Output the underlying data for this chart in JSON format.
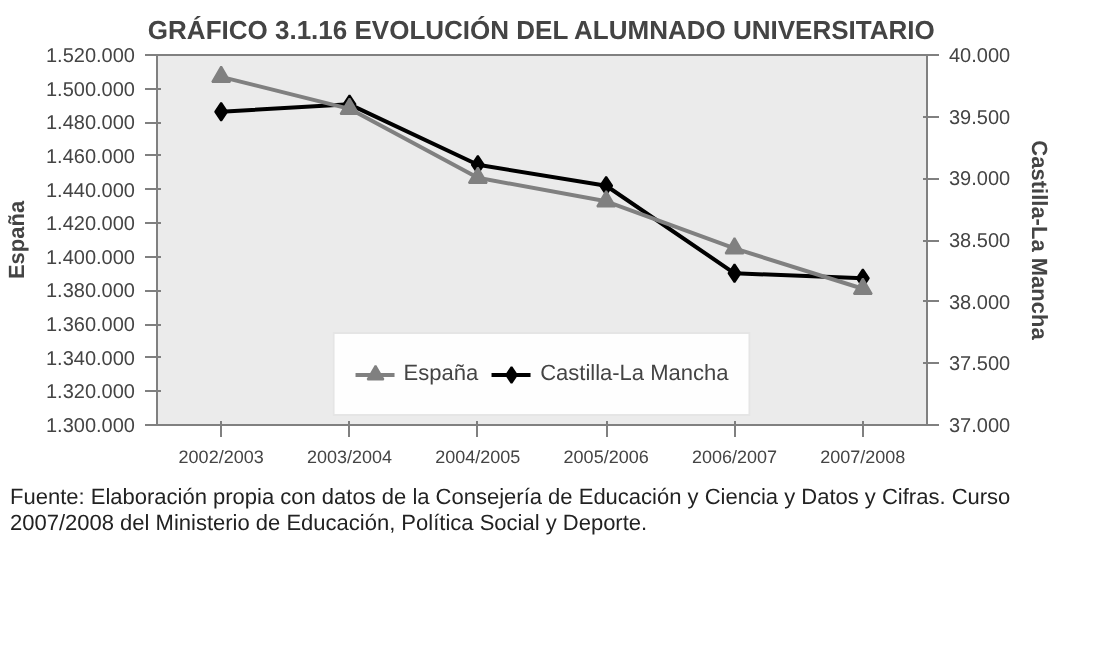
{
  "chart_data": {
    "type": "line",
    "title": "GRÁFICO 3.1.16 EVOLUCIÓN DEL ALUMNADO UNIVERSITARIO",
    "ylabel": "España",
    "y2label": "Castilla-La Mancha",
    "categories": [
      "2002/2003",
      "2003/2004",
      "2004/2005",
      "2005/2006",
      "2006/2007",
      "2007/2008"
    ],
    "series": [
      {
        "name": "España",
        "color": "#808080",
        "marker": "triangle",
        "values": [
          1507000,
          1488000,
          1447000,
          1433000,
          1405000,
          1381000
        ]
      },
      {
        "name": "Castilla-La Mancha",
        "color": "#000000",
        "marker": "diamond",
        "axis": "y2",
        "values": [
          39540,
          39600,
          39110,
          38940,
          38230,
          38190
        ]
      }
    ],
    "ylim": [
      1300000,
      1520000
    ],
    "yticks": [
      {
        "value": 1300000,
        "label": "1.300.000"
      },
      {
        "value": 1320000,
        "label": "1.320.000"
      },
      {
        "value": 1340000,
        "label": "1.340.000"
      },
      {
        "value": 1360000,
        "label": "1.360.000"
      },
      {
        "value": 1380000,
        "label": "1.380.000"
      },
      {
        "value": 1400000,
        "label": "1.400.000"
      },
      {
        "value": 1420000,
        "label": "1.420.000"
      },
      {
        "value": 1440000,
        "label": "1.440.000"
      },
      {
        "value": 1460000,
        "label": "1.460.000"
      },
      {
        "value": 1480000,
        "label": "1.480.000"
      },
      {
        "value": 1500000,
        "label": "1.500.000"
      },
      {
        "value": 1520000,
        "label": "1.520.000"
      }
    ],
    "y2lim": [
      37000,
      40000
    ],
    "y2ticks": [
      {
        "value": 37000,
        "label": "37.000"
      },
      {
        "value": 37500,
        "label": "37.500"
      },
      {
        "value": 38000,
        "label": "38.000"
      },
      {
        "value": 38500,
        "label": "38.500"
      },
      {
        "value": 39000,
        "label": "39.000"
      },
      {
        "value": 39500,
        "label": "39.500"
      },
      {
        "value": 40000,
        "label": "40.000"
      }
    ],
    "grid": false,
    "legend": "bottom",
    "annotations": [
      "Fuente: Elaboración propia con datos de la Consejería de Educación y Ciencia y Datos y Cifras. Curso 2007/2008 del Ministerio de Educación, Política Social y Deporte."
    ]
  }
}
